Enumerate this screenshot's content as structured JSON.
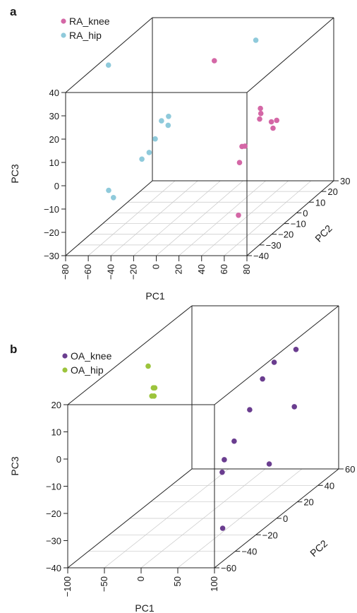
{
  "chart_data": [
    {
      "panel_label": "a",
      "type": "scatter3d",
      "xlabel": "PC1",
      "ylabel": "PC2",
      "zlabel": "PC3",
      "xlim": [
        -80,
        80
      ],
      "ylim": [
        -40,
        30
      ],
      "zlim": [
        -30,
        40
      ],
      "x_ticks": [
        "−80",
        "−60",
        "−40",
        "−20",
        "0",
        "20",
        "40",
        "60",
        "80"
      ],
      "y_ticks": [
        "−40",
        "−30",
        "−20",
        "−10",
        "0",
        "10",
        "20",
        "30"
      ],
      "z_ticks": [
        "−30",
        "−20",
        "−10",
        "0",
        "10",
        "20",
        "30",
        "40"
      ],
      "x_tick_values": [
        -80,
        -60,
        -40,
        -20,
        0,
        20,
        40,
        60,
        80
      ],
      "y_tick_values": [
        -40,
        -30,
        -20,
        -10,
        0,
        10,
        20,
        30
      ],
      "z_tick_values": [
        -30,
        -20,
        -10,
        0,
        10,
        20,
        30,
        40
      ],
      "legend_position": "top-left",
      "series": [
        {
          "name": "RA_knee",
          "color": "#d467a6",
          "points": [
            {
              "x": 2,
              "y": 5,
              "z": 33
            },
            {
              "x": 70,
              "y": -20,
              "z": 24
            },
            {
              "x": 66,
              "y": -16,
              "z": 20
            },
            {
              "x": 54,
              "y": -6,
              "z": 13
            },
            {
              "x": 68,
              "y": -5,
              "z": 12
            },
            {
              "x": 68,
              "y": -8,
              "z": 10
            },
            {
              "x": 60,
              "y": -2,
              "z": 10
            },
            {
              "x": 52,
              "y": -16,
              "z": 6
            },
            {
              "x": 45,
              "y": -12,
              "z": 4
            },
            {
              "x": 45,
              "y": -14,
              "z": -2
            },
            {
              "x": 55,
              "y": -24,
              "z": -20
            }
          ]
        },
        {
          "name": "RA_hip",
          "color": "#8fcadb",
          "points": [
            {
              "x": -75,
              "y": -10,
              "z": 38
            },
            {
              "x": 20,
              "y": 22,
              "z": 34
            },
            {
              "x": -22,
              "y": -10,
              "z": 16
            },
            {
              "x": -26,
              "y": -12,
              "z": 15
            },
            {
              "x": -18,
              "y": -14,
              "z": 14
            },
            {
              "x": -25,
              "y": -18,
              "z": 10
            },
            {
              "x": -26,
              "y": -22,
              "z": 6
            },
            {
              "x": -28,
              "y": -26,
              "z": 5
            },
            {
              "x": -42,
              "y": -40,
              "z": -2
            },
            {
              "x": -40,
              "y": -38,
              "z": -6
            }
          ]
        }
      ]
    },
    {
      "panel_label": "b",
      "type": "scatter3d",
      "xlabel": "PC1",
      "ylabel": "PC2",
      "zlabel": "PC3",
      "xlim": [
        -100,
        100
      ],
      "ylim": [
        -60,
        60
      ],
      "zlim": [
        -40,
        20
      ],
      "x_ticks": [
        "−100",
        "−50",
        "0",
        "50",
        "100"
      ],
      "y_ticks": [
        "−60",
        "−40",
        "−20",
        "0",
        "20",
        "40",
        "60"
      ],
      "z_ticks": [
        "−40",
        "−30",
        "−20",
        "−10",
        "0",
        "10",
        "20"
      ],
      "x_tick_values": [
        -100,
        -50,
        0,
        50,
        100
      ],
      "y_tick_values": [
        -60,
        -40,
        -20,
        0,
        20,
        40,
        60
      ],
      "z_tick_values": [
        -40,
        -30,
        -20,
        -10,
        0,
        10,
        20
      ],
      "legend_position": "top-left",
      "series": [
        {
          "name": "OA_knee",
          "color": "#6a3d8f",
          "points": [
            {
              "x": 70,
              "y": 40,
              "z": 10
            },
            {
              "x": 53,
              "y": 31,
              "z": 8
            },
            {
              "x": 47,
              "y": 24,
              "z": 4
            },
            {
              "x": 45,
              "y": 13,
              "z": -4
            },
            {
              "x": 45,
              "y": -2,
              "z": -11
            },
            {
              "x": 40,
              "y": -8,
              "z": -16
            },
            {
              "x": 40,
              "y": -10,
              "z": -20
            },
            {
              "x": 96,
              "y": 20,
              "z": -5
            },
            {
              "x": 90,
              "y": 0,
              "z": -20
            },
            {
              "x": 90,
              "y": -45,
              "z": -30
            }
          ]
        },
        {
          "name": "OA_hip",
          "color": "#9cc43c",
          "points": [
            {
              "x": -75,
              "y": 0,
              "z": 16
            },
            {
              "x": -68,
              "y": 0,
              "z": 8
            },
            {
              "x": -66,
              "y": 0,
              "z": 8
            },
            {
              "x": -70,
              "y": 0,
              "z": 5
            },
            {
              "x": -67,
              "y": 0,
              "z": 5
            }
          ]
        }
      ]
    }
  ]
}
